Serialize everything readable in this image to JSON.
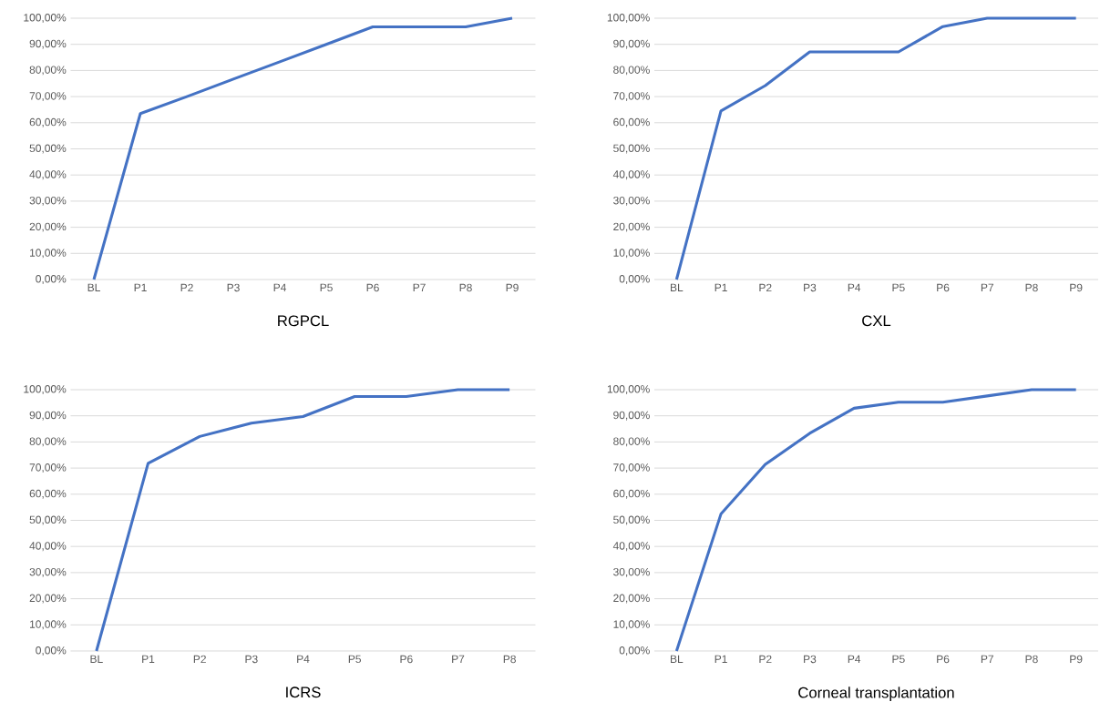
{
  "chart_data": [
    {
      "type": "line",
      "title": "RGPCL",
      "categories": [
        "BL",
        "P1",
        "P2",
        "P3",
        "P4",
        "P5",
        "P6",
        "P7",
        "P8",
        "P9"
      ],
      "values": [
        0,
        63.5,
        70,
        76.7,
        83.3,
        90,
        96.7,
        96.7,
        96.7,
        100
      ],
      "color": "#4472c4",
      "ylim": [
        0,
        100
      ],
      "grid": "y",
      "yticks": [
        {
          "value": 0,
          "label": "0,00%"
        },
        {
          "value": 10,
          "label": "10,00%"
        },
        {
          "value": 20,
          "label": "20,00%"
        },
        {
          "value": 30,
          "label": "30,00%"
        },
        {
          "value": 40,
          "label": "40,00%"
        },
        {
          "value": 50,
          "label": "50,00%"
        },
        {
          "value": 60,
          "label": "60,00%"
        },
        {
          "value": 70,
          "label": "70,00%"
        },
        {
          "value": 80,
          "label": "80,00%"
        },
        {
          "value": 90,
          "label": "90,00%"
        },
        {
          "value": 100,
          "label": "100,00%"
        }
      ]
    },
    {
      "type": "line",
      "title": "CXL",
      "categories": [
        "BL",
        "P1",
        "P2",
        "P3",
        "P4",
        "P5",
        "P6",
        "P7",
        "P8",
        "P9"
      ],
      "values": [
        0,
        64.5,
        74.2,
        87.1,
        87.1,
        87.1,
        96.8,
        100,
        100,
        100
      ],
      "color": "#4472c4",
      "ylim": [
        0,
        100
      ],
      "grid": "y",
      "yticks": [
        {
          "value": 0,
          "label": "0,00%"
        },
        {
          "value": 10,
          "label": "10,00%"
        },
        {
          "value": 20,
          "label": "20,00%"
        },
        {
          "value": 30,
          "label": "30,00%"
        },
        {
          "value": 40,
          "label": "40,00%"
        },
        {
          "value": 50,
          "label": "50,00%"
        },
        {
          "value": 60,
          "label": "60,00%"
        },
        {
          "value": 70,
          "label": "70,00%"
        },
        {
          "value": 80,
          "label": "80,00%"
        },
        {
          "value": 90,
          "label": "90,00%"
        },
        {
          "value": 100,
          "label": "100,00%"
        }
      ]
    },
    {
      "type": "line",
      "title": "ICRS",
      "categories": [
        "BL",
        "P1",
        "P2",
        "P3",
        "P4",
        "P5",
        "P6",
        "P7",
        "P8"
      ],
      "values": [
        0,
        71.8,
        82.1,
        87.2,
        89.7,
        97.4,
        97.4,
        100,
        100
      ],
      "color": "#4472c4",
      "ylim": [
        0,
        100
      ],
      "grid": "y",
      "yticks": [
        {
          "value": 0,
          "label": "0,00%"
        },
        {
          "value": 10,
          "label": "10,00%"
        },
        {
          "value": 20,
          "label": "20,00%"
        },
        {
          "value": 30,
          "label": "30,00%"
        },
        {
          "value": 40,
          "label": "40,00%"
        },
        {
          "value": 50,
          "label": "50,00%"
        },
        {
          "value": 60,
          "label": "60,00%"
        },
        {
          "value": 70,
          "label": "70,00%"
        },
        {
          "value": 80,
          "label": "80,00%"
        },
        {
          "value": 90,
          "label": "90,00%"
        },
        {
          "value": 100,
          "label": "100,00%"
        }
      ]
    },
    {
      "type": "line",
      "title": "Corneal transplantation",
      "categories": [
        "BL",
        "P1",
        "P2",
        "P3",
        "P4",
        "P5",
        "P6",
        "P7",
        "P8",
        "P9"
      ],
      "values": [
        0,
        52.4,
        71.4,
        83.3,
        92.9,
        95.2,
        95.2,
        97.6,
        100,
        100
      ],
      "color": "#4472c4",
      "ylim": [
        0,
        100
      ],
      "grid": "y",
      "yticks": [
        {
          "value": 0,
          "label": "0,00%"
        },
        {
          "value": 10,
          "label": "10,00%"
        },
        {
          "value": 20,
          "label": "20,00%"
        },
        {
          "value": 30,
          "label": "30,00%"
        },
        {
          "value": 40,
          "label": "40,00%"
        },
        {
          "value": 50,
          "label": "50,00%"
        },
        {
          "value": 60,
          "label": "60,00%"
        },
        {
          "value": 70,
          "label": "70,00%"
        },
        {
          "value": 80,
          "label": "80,00%"
        },
        {
          "value": 90,
          "label": "90,00%"
        },
        {
          "value": 100,
          "label": "100,00%"
        }
      ]
    }
  ]
}
